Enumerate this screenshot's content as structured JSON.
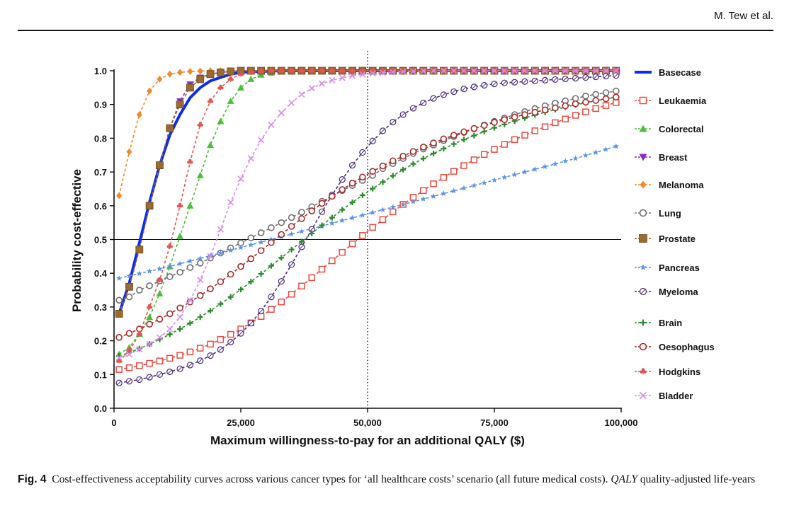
{
  "header": {
    "running_head": "M. Tew et al."
  },
  "caption": {
    "label": "Fig. 4",
    "text": "Cost-effectiveness acceptability curves across various cancer types for ‘all healthcare costs’ scenario (all future medical costs).",
    "abbr": "QALY",
    "abbr_def": "quality-adjusted life-years"
  },
  "chart_data": {
    "type": "line",
    "title": "",
    "xlabel": "Maximum willingness-to-pay for an additional QALY ($)",
    "ylabel": "Probability cost-effective",
    "xlim": [
      0,
      100000
    ],
    "ylim": [
      0,
      1
    ],
    "xticks": [
      0,
      25000,
      50000,
      75000,
      100000
    ],
    "xtick_labels": [
      "0",
      "25,000",
      "50,000",
      "75,000",
      "100,000"
    ],
    "yticks": [
      0,
      0.1,
      0.2,
      0.3,
      0.4,
      0.5,
      0.6,
      0.7,
      0.8,
      0.9,
      1.0
    ],
    "ytick_labels": [
      "0.0",
      "0.1",
      "0.2",
      "0.3",
      "0.4",
      "0.5",
      "0.6",
      "0.7",
      "0.8",
      "0.9",
      "1.0"
    ],
    "reference_lines": {
      "horizontal_y": 0.5,
      "vertical_x": 50000
    },
    "legend_position": "right",
    "x_step": 2000,
    "x": [
      1000,
      3000,
      5000,
      7000,
      9000,
      11000,
      13000,
      15000,
      17000,
      19000,
      21000,
      23000,
      25000,
      27000,
      29000,
      31000,
      33000,
      35000,
      37000,
      39000,
      41000,
      43000,
      45000,
      47000,
      49000,
      51000,
      53000,
      55000,
      57000,
      59000,
      61000,
      63000,
      65000,
      67000,
      69000,
      71000,
      73000,
      75000,
      77000,
      79000,
      81000,
      83000,
      85000,
      87000,
      89000,
      91000,
      93000,
      95000,
      97000,
      99000
    ],
    "series": [
      {
        "name": "Basecase",
        "color": "#0a2cf0",
        "marker": "none",
        "dashed": false,
        "values": [
          0.28,
          0.37,
          0.49,
          0.61,
          0.72,
          0.81,
          0.87,
          0.92,
          0.95,
          0.97,
          0.98,
          0.99,
          0.995,
          0.997,
          0.998,
          0.999,
          1.0,
          1.0,
          1.0,
          1.0,
          1.0,
          1.0,
          1.0,
          1.0,
          1.0,
          1.0,
          1.0,
          1.0,
          1.0,
          1.0,
          1.0,
          1.0,
          1.0,
          1.0,
          1.0,
          1.0,
          1.0,
          1.0,
          1.0,
          1.0,
          1.0,
          1.0,
          1.0,
          1.0,
          1.0,
          1.0,
          1.0,
          1.0,
          1.0,
          1.0
        ]
      },
      {
        "name": "Leukaemia",
        "color": "#ec4a43",
        "marker": "square-open",
        "dashed": true,
        "values": [
          0.115,
          0.12,
          0.126,
          0.133,
          0.14,
          0.148,
          0.157,
          0.167,
          0.178,
          0.19,
          0.204,
          0.219,
          0.235,
          0.253,
          0.272,
          0.293,
          0.315,
          0.338,
          0.362,
          0.387,
          0.412,
          0.437,
          0.462,
          0.487,
          0.512,
          0.536,
          0.559,
          0.582,
          0.604,
          0.625,
          0.645,
          0.665,
          0.684,
          0.702,
          0.719,
          0.736,
          0.752,
          0.767,
          0.782,
          0.796,
          0.809,
          0.822,
          0.834,
          0.846,
          0.857,
          0.868,
          0.878,
          0.888,
          0.897,
          0.906
        ]
      },
      {
        "name": "Colorectal",
        "color": "#4cbf3a",
        "marker": "triangle-up",
        "dashed": true,
        "values": [
          0.16,
          0.18,
          0.22,
          0.27,
          0.34,
          0.42,
          0.51,
          0.6,
          0.69,
          0.78,
          0.85,
          0.91,
          0.95,
          0.975,
          0.988,
          0.994,
          0.997,
          0.999,
          1.0,
          1.0,
          1.0,
          1.0,
          1.0,
          1.0,
          1.0,
          1.0,
          1.0,
          1.0,
          1.0,
          1.0,
          1.0,
          1.0,
          1.0,
          1.0,
          1.0,
          1.0,
          1.0,
          1.0,
          1.0,
          1.0,
          1.0,
          1.0,
          1.0,
          1.0,
          1.0,
          1.0,
          1.0,
          1.0,
          1.0,
          1.0
        ]
      },
      {
        "name": "Breast",
        "color": "#8a2ac7",
        "marker": "triangle-down",
        "dashed": true,
        "values": [
          0.28,
          0.36,
          0.47,
          0.6,
          0.72,
          0.83,
          0.91,
          0.96,
          0.98,
          0.99,
          0.995,
          0.998,
          1.0,
          1.0,
          1.0,
          1.0,
          1.0,
          1.0,
          1.0,
          1.0,
          1.0,
          1.0,
          1.0,
          1.0,
          1.0,
          1.0,
          1.0,
          1.0,
          1.0,
          1.0,
          1.0,
          1.0,
          1.0,
          1.0,
          1.0,
          1.0,
          1.0,
          1.0,
          1.0,
          1.0,
          1.0,
          1.0,
          1.0,
          1.0,
          1.0,
          1.0,
          1.0,
          1.0,
          1.0,
          1.0
        ]
      },
      {
        "name": "Melanoma",
        "color": "#f08a2a",
        "marker": "diamond",
        "dashed": true,
        "values": [
          0.63,
          0.76,
          0.87,
          0.94,
          0.975,
          0.99,
          0.995,
          0.998,
          0.999,
          1.0,
          1.0,
          1.0,
          1.0,
          1.0,
          1.0,
          1.0,
          1.0,
          1.0,
          1.0,
          1.0,
          1.0,
          1.0,
          1.0,
          1.0,
          1.0,
          1.0,
          1.0,
          1.0,
          1.0,
          1.0,
          1.0,
          1.0,
          1.0,
          1.0,
          1.0,
          1.0,
          1.0,
          1.0,
          1.0,
          1.0,
          1.0,
          1.0,
          1.0,
          1.0,
          1.0,
          1.0,
          1.0,
          1.0,
          1.0,
          1.0
        ]
      },
      {
        "name": "Lung",
        "color": "#707070",
        "marker": "circle-open",
        "dashed": true,
        "values": [
          0.32,
          0.33,
          0.35,
          0.363,
          0.377,
          0.39,
          0.403,
          0.417,
          0.43,
          0.445,
          0.46,
          0.475,
          0.49,
          0.505,
          0.52,
          0.535,
          0.55,
          0.565,
          0.581,
          0.597,
          0.613,
          0.629,
          0.645,
          0.66,
          0.675,
          0.69,
          0.71,
          0.725,
          0.74,
          0.755,
          0.768,
          0.78,
          0.793,
          0.805,
          0.817,
          0.828,
          0.839,
          0.85,
          0.86,
          0.87,
          0.879,
          0.888,
          0.896,
          0.904,
          0.911,
          0.918,
          0.925,
          0.93,
          0.935,
          0.94
        ]
      },
      {
        "name": "Prostate",
        "color": "#9a6a2e",
        "marker": "square-filled",
        "dashed": true,
        "values": [
          0.28,
          0.36,
          0.47,
          0.6,
          0.72,
          0.83,
          0.9,
          0.95,
          0.975,
          0.99,
          0.995,
          0.998,
          1.0,
          1.0,
          1.0,
          1.0,
          1.0,
          1.0,
          1.0,
          1.0,
          1.0,
          1.0,
          1.0,
          1.0,
          1.0,
          1.0,
          1.0,
          1.0,
          1.0,
          1.0,
          1.0,
          1.0,
          1.0,
          1.0,
          1.0,
          1.0,
          1.0,
          1.0,
          1.0,
          1.0,
          1.0,
          1.0,
          1.0,
          1.0,
          1.0,
          1.0,
          1.0,
          1.0,
          1.0,
          1.0
        ]
      },
      {
        "name": "Pancreas",
        "color": "#5b93e6",
        "marker": "star",
        "dashed": true,
        "values": [
          0.385,
          0.392,
          0.399,
          0.406,
          0.413,
          0.42,
          0.428,
          0.436,
          0.444,
          0.452,
          0.46,
          0.468,
          0.476,
          0.484,
          0.492,
          0.5,
          0.508,
          0.516,
          0.524,
          0.532,
          0.54,
          0.548,
          0.556,
          0.564,
          0.572,
          0.58,
          0.588,
          0.596,
          0.604,
          0.612,
          0.62,
          0.628,
          0.636,
          0.644,
          0.652,
          0.66,
          0.668,
          0.676,
          0.684,
          0.692,
          0.7,
          0.708,
          0.716,
          0.724,
          0.732,
          0.74,
          0.749,
          0.758,
          0.767,
          0.776
        ]
      },
      {
        "name": "Myeloma",
        "color": "#4a2a7a",
        "marker": "circle-slash",
        "dashed": true,
        "values": [
          0.075,
          0.08,
          0.085,
          0.092,
          0.1,
          0.108,
          0.117,
          0.128,
          0.141,
          0.156,
          0.174,
          0.196,
          0.222,
          0.252,
          0.288,
          0.33,
          0.376,
          0.426,
          0.478,
          0.53,
          0.582,
          0.632,
          0.678,
          0.72,
          0.758,
          0.792,
          0.822,
          0.848,
          0.87,
          0.889,
          0.905,
          0.918,
          0.929,
          0.938,
          0.946,
          0.952,
          0.957,
          0.961,
          0.964,
          0.966,
          0.968,
          0.97,
          0.972,
          0.974,
          0.976,
          0.978,
          0.98,
          0.982,
          0.984,
          0.986
        ]
      },
      {
        "name": "Brain",
        "color": "#2e8a2e",
        "marker": "plus",
        "dashed": true,
        "values": [
          0.155,
          0.165,
          0.177,
          0.19,
          0.204,
          0.219,
          0.235,
          0.252,
          0.27,
          0.289,
          0.309,
          0.33,
          0.352,
          0.375,
          0.398,
          0.422,
          0.446,
          0.47,
          0.494,
          0.518,
          0.542,
          0.565,
          0.588,
          0.61,
          0.631,
          0.651,
          0.67,
          0.689,
          0.707,
          0.724,
          0.74,
          0.755,
          0.769,
          0.783,
          0.796,
          0.808,
          0.82,
          0.831,
          0.841,
          0.851,
          0.86,
          0.869,
          0.877,
          0.885,
          0.892,
          0.899,
          0.905,
          0.911,
          0.917,
          0.922
        ]
      },
      {
        "name": "Oesophagus",
        "color": "#a82a2a",
        "marker": "circle-open",
        "dashed": true,
        "values": [
          0.21,
          0.222,
          0.235,
          0.249,
          0.264,
          0.28,
          0.297,
          0.315,
          0.334,
          0.354,
          0.375,
          0.397,
          0.42,
          0.443,
          0.467,
          0.491,
          0.515,
          0.539,
          0.562,
          0.585,
          0.607,
          0.628,
          0.648,
          0.667,
          0.685,
          0.702,
          0.718,
          0.733,
          0.747,
          0.761,
          0.774,
          0.786,
          0.798,
          0.809,
          0.819,
          0.829,
          0.838,
          0.847,
          0.855,
          0.863,
          0.87,
          0.877,
          0.884,
          0.89,
          0.896,
          0.902,
          0.907,
          0.912,
          0.917,
          0.922
        ]
      },
      {
        "name": "Hodgkins",
        "color": "#e25555",
        "marker": "club",
        "dashed": true,
        "values": [
          0.14,
          0.17,
          0.22,
          0.3,
          0.38,
          0.48,
          0.6,
          0.73,
          0.84,
          0.91,
          0.95,
          0.975,
          0.99,
          0.995,
          0.998,
          1.0,
          1.0,
          1.0,
          1.0,
          1.0,
          1.0,
          1.0,
          1.0,
          1.0,
          1.0,
          1.0,
          1.0,
          1.0,
          1.0,
          1.0,
          1.0,
          1.0,
          1.0,
          1.0,
          1.0,
          1.0,
          1.0,
          1.0,
          1.0,
          1.0,
          1.0,
          1.0,
          1.0,
          1.0,
          1.0,
          1.0,
          1.0,
          1.0,
          1.0,
          1.0
        ]
      },
      {
        "name": "Bladder",
        "color": "#d58ee8",
        "marker": "x",
        "dashed": true,
        "values": [
          0.15,
          0.16,
          0.175,
          0.19,
          0.21,
          0.235,
          0.27,
          0.32,
          0.38,
          0.45,
          0.53,
          0.61,
          0.68,
          0.74,
          0.795,
          0.84,
          0.875,
          0.905,
          0.93,
          0.948,
          0.962,
          0.972,
          0.979,
          0.985,
          0.989,
          0.992,
          0.994,
          0.996,
          0.997,
          0.998,
          0.999,
          1.0,
          1.0,
          1.0,
          1.0,
          1.0,
          1.0,
          1.0,
          1.0,
          1.0,
          1.0,
          1.0,
          1.0,
          1.0,
          1.0,
          1.0,
          1.0,
          1.0,
          1.0,
          1.0
        ]
      }
    ]
  }
}
